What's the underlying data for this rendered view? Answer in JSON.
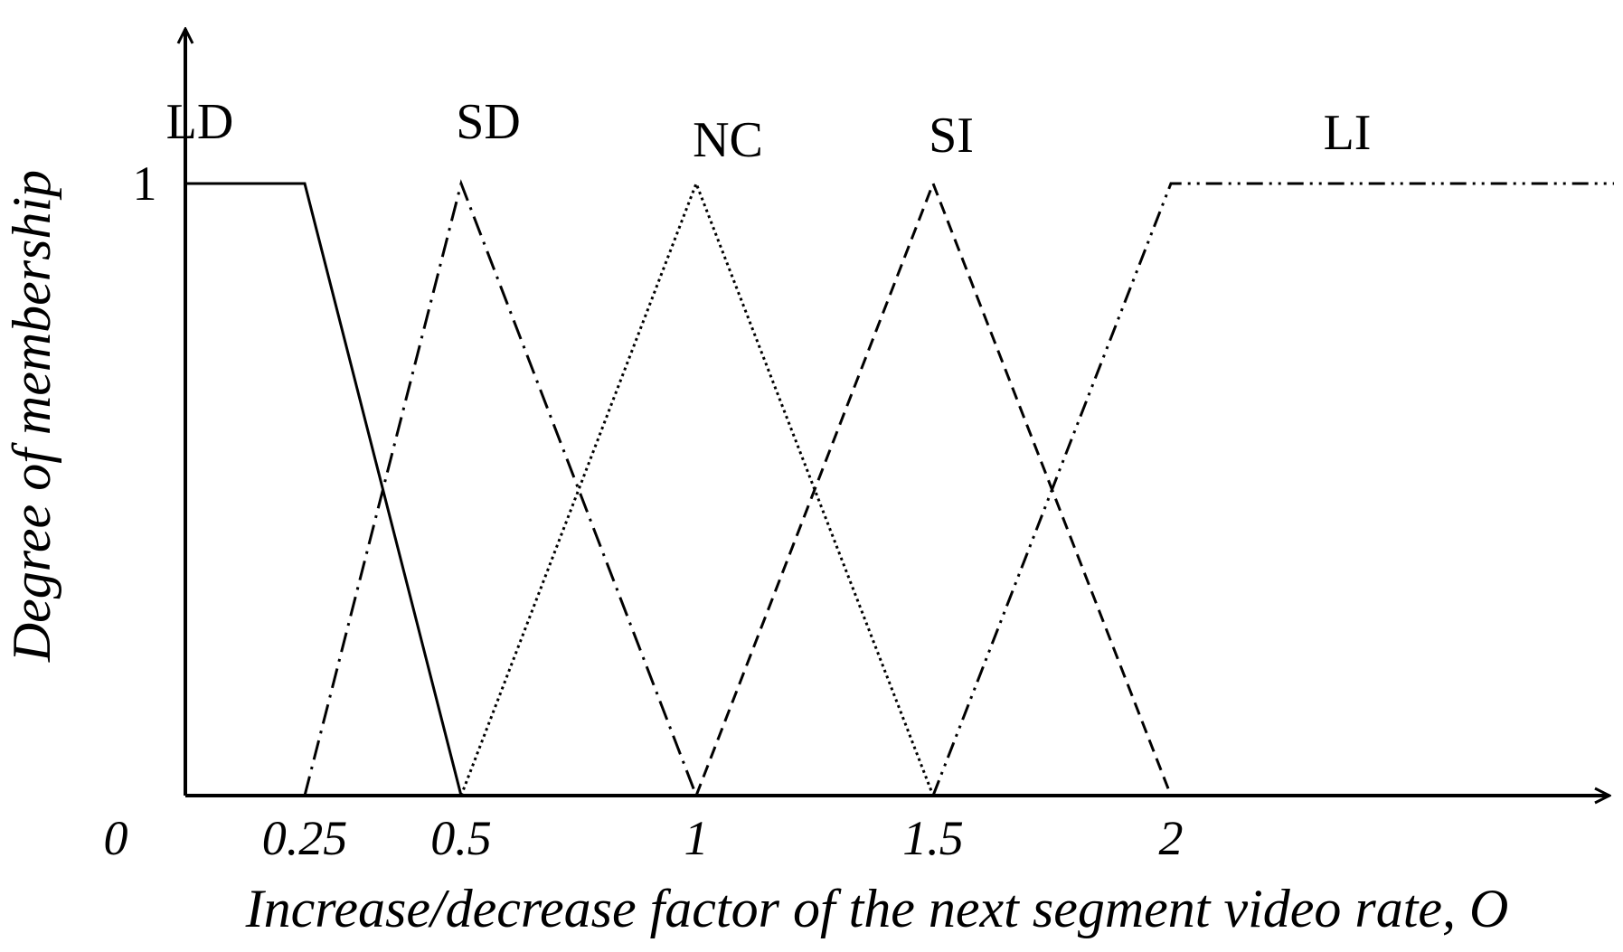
{
  "chart_data": {
    "type": "line",
    "xlabel": "Increase/decrease factor of the next segment video rate, O",
    "ylabel": "Degree of membership",
    "x_ticks": [
      "0",
      "0.25",
      "0.5",
      "1",
      "1.5",
      "2"
    ],
    "y_ticks": [
      "1"
    ],
    "xlim": [
      0,
      3
    ],
    "ylim": [
      0,
      1
    ],
    "grid": false,
    "series": [
      {
        "name": "LD",
        "style": "solid",
        "x": [
          0,
          0.25,
          0.5
        ],
        "y": [
          1,
          1,
          0
        ]
      },
      {
        "name": "SD",
        "style": "dash-dot",
        "x": [
          0.25,
          0.5,
          1
        ],
        "y": [
          0,
          1,
          0
        ]
      },
      {
        "name": "NC",
        "style": "dotted",
        "x": [
          0.5,
          1,
          1.5
        ],
        "y": [
          0,
          1,
          0
        ]
      },
      {
        "name": "SI",
        "style": "dashed",
        "x": [
          1,
          1.5,
          2
        ],
        "y": [
          0,
          1,
          0
        ]
      },
      {
        "name": "LI",
        "style": "dash-dot-dot",
        "x": [
          1.5,
          2,
          3
        ],
        "y": [
          0,
          1,
          1
        ]
      }
    ]
  }
}
